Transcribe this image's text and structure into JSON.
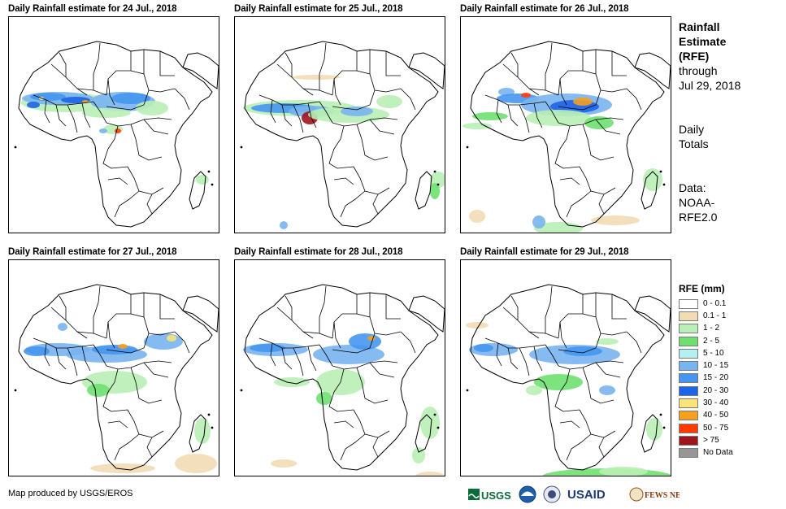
{
  "panels": [
    {
      "title": "Daily Rainfall estimate for 24 Jul., 2018"
    },
    {
      "title": "Daily Rainfall estimate for 25 Jul., 2018"
    },
    {
      "title": "Daily Rainfall estimate for 26 Jul., 2018"
    },
    {
      "title": "Daily Rainfall estimate for 27 Jul., 2018"
    },
    {
      "title": "Daily Rainfall estimate for 28 Jul., 2018"
    },
    {
      "title": "Daily Rainfall estimate for 29 Jul., 2018"
    }
  ],
  "side": {
    "line1": "Rainfall",
    "line2": "Estimate",
    "line3": "(RFE)",
    "line4": "through",
    "line5": "Jul 29, 2018",
    "line6": "Daily",
    "line7": "Totals",
    "line8": "Data:",
    "line9": "NOAA-",
    "line10": "RFE2.0"
  },
  "legend": {
    "title": "RFE (mm)",
    "items": [
      {
        "label": "0 - 0.1",
        "color": "#ffffff"
      },
      {
        "label": "0.1 - 1",
        "color": "#f2dcb4"
      },
      {
        "label": "1 - 2",
        "color": "#b9f0b5"
      },
      {
        "label": "2 - 5",
        "color": "#6ee070"
      },
      {
        "label": "5 - 10",
        "color": "#b4f0f0"
      },
      {
        "label": "10 - 15",
        "color": "#78b4f0"
      },
      {
        "label": "15 - 20",
        "color": "#4696f0"
      },
      {
        "label": "20 - 30",
        "color": "#1e64e6"
      },
      {
        "label": "30 - 40",
        "color": "#fae678"
      },
      {
        "label": "40 - 50",
        "color": "#f5a01e"
      },
      {
        "label": "50 - 75",
        "color": "#ff3c00"
      },
      {
        "label": "> 75",
        "color": "#a0141e"
      },
      {
        "label": "No Data",
        "color": "#969696"
      }
    ]
  },
  "footer": {
    "credit": "Map produced by USGS/EROS",
    "logos": [
      "USGS",
      "NOAA",
      "USAID",
      "FEWS NET"
    ]
  }
}
